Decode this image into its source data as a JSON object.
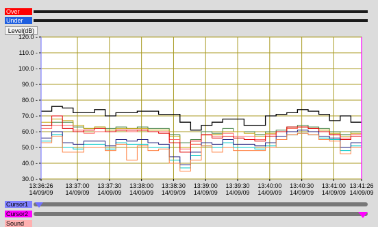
{
  "legend": {
    "over": {
      "label": "Over",
      "color": "#ff0000"
    },
    "under": {
      "label": "Under",
      "color": "#1e5fe0"
    }
  },
  "cursors": {
    "cursor1": {
      "label": "Cursor1",
      "color": "#8080ff",
      "time": "13:36:26"
    },
    "cursor2": {
      "label": "Cursor2",
      "color": "#ff00ff",
      "time": "13:41:26"
    }
  },
  "sound": {
    "label": "Sound",
    "color": "#ffb0b0"
  },
  "chart_data": {
    "type": "line",
    "ylabel": "Level(dB)",
    "ylim": [
      30,
      120
    ],
    "yticks": [
      "120.0",
      "110.0",
      "100.0",
      "90.0",
      "80.0",
      "70.0",
      "60.0",
      "50.0",
      "40.0",
      "30.0"
    ],
    "xlim": [
      "13:36:26",
      "13:41:26"
    ],
    "xticks": [
      {
        "time": "13:36:26",
        "date": "14/09/09"
      },
      {
        "time": "13:37:00",
        "date": "14/09/09"
      },
      {
        "time": "13:37:30",
        "date": "14/09/09"
      },
      {
        "time": "13:38:00",
        "date": "14/09/09"
      },
      {
        "time": "13:38:30",
        "date": "14/09/09"
      },
      {
        "time": "13:39:00",
        "date": "14/09/09"
      },
      {
        "time": "13:39:30",
        "date": "14/09/09"
      },
      {
        "time": "13:40:00",
        "date": "14/09/09"
      },
      {
        "time": "13:40:30",
        "date": "14/09/09"
      },
      {
        "time": "13:41:00",
        "date": "14/09/09"
      },
      {
        "time": "13:41:26",
        "date": "14/09/09"
      }
    ],
    "grid": true,
    "step": true,
    "x": [
      "13:36:26",
      "13:36:36",
      "13:36:46",
      "13:36:56",
      "13:37:06",
      "13:37:16",
      "13:37:26",
      "13:37:36",
      "13:37:46",
      "13:37:56",
      "13:38:06",
      "13:38:16",
      "13:38:26",
      "13:38:36",
      "13:38:46",
      "13:38:56",
      "13:39:06",
      "13:39:16",
      "13:39:26",
      "13:39:36",
      "13:39:46",
      "13:39:56",
      "13:40:06",
      "13:40:16",
      "13:40:26",
      "13:40:36",
      "13:40:46",
      "13:40:56",
      "13:41:06",
      "13:41:16"
    ],
    "series": [
      {
        "color": "#000000",
        "values": [
          73,
          76,
          75,
          72,
          72,
          74,
          70,
          72,
          72,
          73,
          73,
          71,
          71,
          66,
          61,
          64,
          66,
          68,
          68,
          64,
          64,
          70,
          71,
          72,
          74,
          73,
          71,
          67,
          70,
          66
        ]
      },
      {
        "color": "#3f7f3f",
        "values": [
          64,
          66,
          66,
          63,
          62,
          63,
          62,
          63,
          62,
          63,
          62,
          62,
          58,
          53,
          55,
          60,
          59,
          62,
          60,
          60,
          58,
          60,
          61,
          63,
          64,
          63,
          62,
          60,
          58,
          60
        ]
      },
      {
        "color": "#c0a000",
        "values": [
          66,
          68,
          67,
          64,
          62,
          63,
          61,
          62,
          62,
          62,
          61,
          61,
          57,
          50,
          52,
          58,
          58,
          60,
          60,
          59,
          57,
          59,
          60,
          62,
          63,
          62,
          61,
          59,
          57,
          59
        ]
      },
      {
        "color": "#ff6060",
        "values": [
          62,
          64,
          64,
          61,
          59,
          60,
          60,
          61,
          60,
          61,
          60,
          60,
          55,
          49,
          52,
          58,
          57,
          59,
          57,
          57,
          55,
          58,
          60,
          62,
          63,
          62,
          60,
          58,
          56,
          58
        ]
      },
      {
        "color": "#e00000",
        "values": [
          64,
          70,
          62,
          60,
          61,
          62,
          60,
          61,
          61,
          61,
          60,
          59,
          53,
          47,
          54,
          58,
          56,
          57,
          56,
          55,
          54,
          57,
          60,
          63,
          63,
          62,
          60,
          58,
          55,
          57
        ]
      },
      {
        "color": "#00c8c8",
        "values": [
          54,
          58,
          50,
          49,
          52,
          52,
          49,
          53,
          52,
          52,
          50,
          50,
          42,
          37,
          45,
          51,
          50,
          53,
          50,
          50,
          49,
          51,
          55,
          58,
          59,
          58,
          56,
          55,
          48,
          51
        ]
      },
      {
        "color": "#1a1a7a",
        "values": [
          56,
          60,
          53,
          52,
          54,
          54,
          51,
          55,
          54,
          55,
          53,
          52,
          44,
          39,
          47,
          53,
          52,
          55,
          52,
          52,
          51,
          53,
          57,
          60,
          61,
          60,
          57,
          56,
          50,
          53
        ]
      },
      {
        "color": "#ff8040",
        "values": [
          53,
          57,
          47,
          47,
          50,
          50,
          48,
          52,
          42,
          51,
          48,
          49,
          40,
          35,
          42,
          51,
          47,
          50,
          48,
          48,
          48,
          50,
          55,
          58,
          59,
          58,
          55,
          54,
          46,
          50
        ]
      }
    ]
  }
}
